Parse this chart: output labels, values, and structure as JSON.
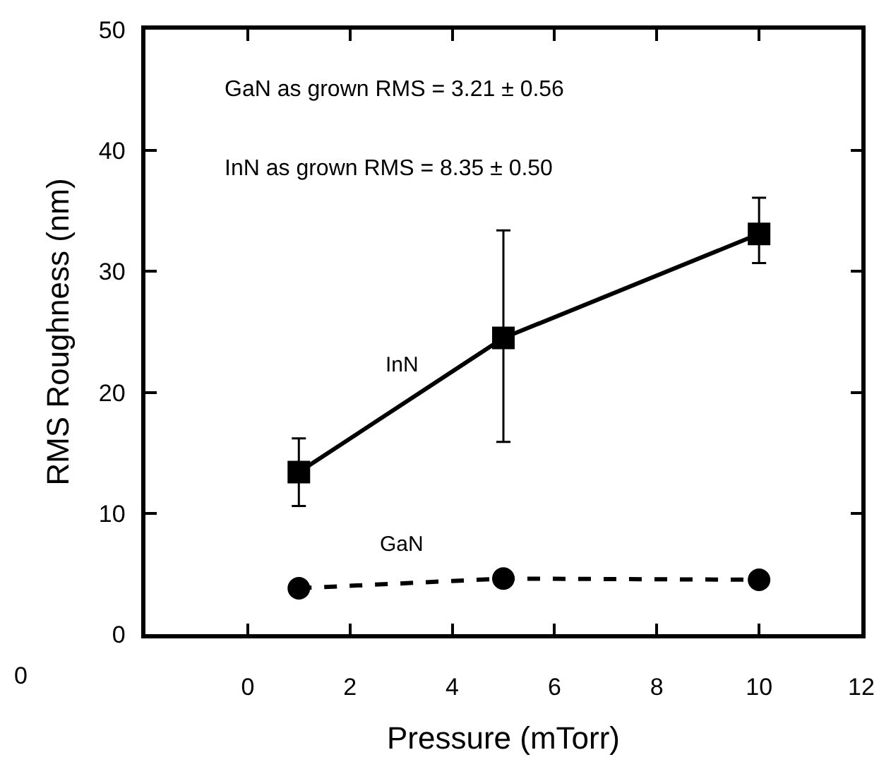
{
  "chart_data": {
    "type": "line",
    "xlabel": "Pressure (mTorr)",
    "ylabel": "RMS Roughness (nm)",
    "xlim": [
      -2,
      12
    ],
    "xticks": [
      0,
      2,
      4,
      6,
      8,
      10,
      12
    ],
    "ylim": [
      0,
      50
    ],
    "yticks": [
      0,
      10,
      20,
      30,
      40,
      50
    ],
    "x": [
      1,
      5,
      10
    ],
    "legend": false,
    "series": [
      {
        "name": "InN",
        "color": "#000000",
        "values": [
          13.4,
          24.5,
          33.1
        ],
        "errors": [
          [
            10.6,
            16.2
          ],
          [
            15.9,
            33.4
          ],
          [
            30.7,
            36.1
          ]
        ],
        "marker": "square",
        "line_style": "solid"
      },
      {
        "name": "GaN",
        "color": "#000000",
        "values": [
          3.8,
          4.6,
          4.5
        ],
        "errors": [
          [
            2.9,
            4.7
          ],
          null,
          null
        ],
        "marker": "circle",
        "line_style": "dashed"
      }
    ],
    "annotations": [
      "GaN as grown RMS = 3.21 ± 0.56",
      "InN as grown RMS = 8.35 ± 0.50",
      "0"
    ]
  }
}
